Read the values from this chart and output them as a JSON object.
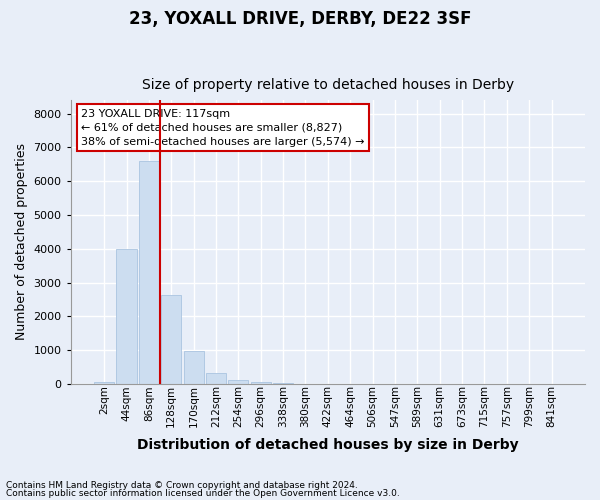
{
  "title1": "23, YOXALL DRIVE, DERBY, DE22 3SF",
  "title2": "Size of property relative to detached houses in Derby",
  "xlabel": "Distribution of detached houses by size in Derby",
  "ylabel": "Number of detached properties",
  "annotation_title": "23 YOXALL DRIVE: 117sqm",
  "annotation_line1": "← 61% of detached houses are smaller (8,827)",
  "annotation_line2": "38% of semi-detached houses are larger (5,574) →",
  "footnote1": "Contains HM Land Registry data © Crown copyright and database right 2024.",
  "footnote2": "Contains public sector information licensed under the Open Government Licence v3.0.",
  "bar_labels": [
    "2sqm",
    "44sqm",
    "86sqm",
    "128sqm",
    "170sqm",
    "212sqm",
    "254sqm",
    "296sqm",
    "338sqm",
    "380sqm",
    "422sqm",
    "464sqm",
    "506sqm",
    "547sqm",
    "589sqm",
    "631sqm",
    "673sqm",
    "715sqm",
    "757sqm",
    "799sqm",
    "841sqm"
  ],
  "bar_values": [
    70,
    3980,
    6600,
    2620,
    960,
    320,
    110,
    60,
    30,
    0,
    0,
    0,
    0,
    0,
    0,
    0,
    0,
    0,
    0,
    0,
    0
  ],
  "bar_color": "#ccddf0",
  "bar_edgecolor": "#aac4e0",
  "vline_x": 2.5,
  "vline_color": "#cc0000",
  "annotation_box_facecolor": "#ffffff",
  "annotation_box_edgecolor": "#cc0000",
  "background_color": "#e8eef8",
  "grid_color": "#ffffff",
  "ylim": [
    0,
    8400
  ],
  "yticks": [
    0,
    1000,
    2000,
    3000,
    4000,
    5000,
    6000,
    7000,
    8000
  ],
  "title1_fontsize": 12,
  "title2_fontsize": 10
}
